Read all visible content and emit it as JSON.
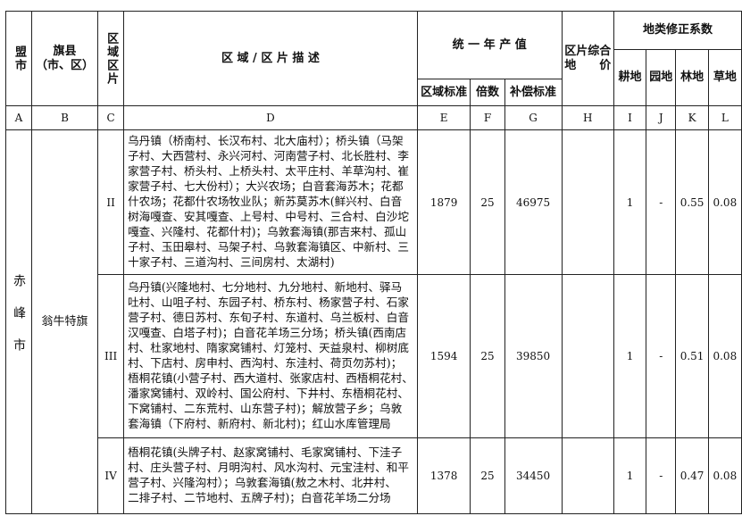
{
  "header": {
    "league_city": "盟市",
    "banner_county": "旗县",
    "banner_county_sub": "（市、区）",
    "zone": "区域区片",
    "description": "区 域 / 区 片 描 述",
    "annual_output": "统 一 年 产 值",
    "regional_standard": "区域标准",
    "multiple": "倍数",
    "compensation_standard": "补偿标准",
    "composite_price_1": "区片综合",
    "composite_price_2": "地　　价",
    "correction": "地类修正系数",
    "cultivated": "耕地",
    "garden": "园地",
    "forest": "林地",
    "grass": "草地"
  },
  "letters": [
    "A",
    "B",
    "C",
    "D",
    "E",
    "F",
    "G",
    "H",
    "I",
    "J",
    "K",
    "L"
  ],
  "city": "赤峰市",
  "county": "翁牛特旗",
  "rows": [
    {
      "zone": "II",
      "desc": [
        "乌丹镇（桥南村、长汉布村、北大庙村）；桥头镇（马架",
        "子村、大西营村、永兴河村、河南营子村、北长胜村、李",
        "家营子村、桥头村、上桥头村、太平庄村、羊草沟村、崔",
        "家营子村、七大份村）；大兴农场；白音套海苏木；花都",
        "什农场；花都什农场牧业队；新苏莫苏木(鲜兴村、白音",
        "树海嘎查、安其嘎查、上号村、中号村、三合村、白沙坨",
        "嘎查、兴隆村、花都什村)；乌敦套海镇(那吉来村、孤山",
        "子村、玉田皋村、马架子村、乌敦套海镇区、中新村、三",
        "十家子村、三道沟村、三间房村、太湖村)"
      ],
      "e": "1879",
      "f": "25",
      "g": "46975",
      "h": "",
      "i": "1",
      "j": "-",
      "k": "0.55",
      "l": "0.08"
    },
    {
      "zone": "III",
      "desc": [
        "乌丹镇(兴隆地村、七分地村、九分地村、新地村、驿马",
        "吐村、山咀子村、东园子村、桥东村、杨家营子村、石家",
        "营子村、德日苏村、东旬子村、东道村、乌兰板村、白音",
        "汉嘎查、白塔子村)；白音花羊场三分场；桥头镇(西南店",
        "村、杜家地村、隋家窝铺村、灯笼村、天益泉村、柳树底",
        "村、下店村、房申村、西沟村、东洼村、荷页勿苏村)；",
        "梧桐花镇(小营子村、西大道村、张家店村、西梧桐花村、",
        "潘家窝铺村、双岭村、国公府村、下井村、东梧桐花村、",
        "下窝铺村、二东荒村、山东营子村)；解放营子乡；乌敦",
        "套海镇（下府村、新府村、新北村)；红山水库管理局"
      ],
      "e": "1594",
      "f": "25",
      "g": "39850",
      "h": "",
      "i": "1",
      "j": "-",
      "k": "0.51",
      "l": "0.08"
    },
    {
      "zone": "IV",
      "desc": [
        "梧桐花镇(头牌子村、赵家窝铺村、毛家窝铺村、下洼子",
        "村、庄头营子村、月明沟村、风水沟村、元宝洼村、和平",
        "营子村、兴隆沟村）；乌敦套海镇(敖之木村、北井村、",
        "二排子村、二节地村、五牌子村)；白音花羊场二分场"
      ],
      "e": "1378",
      "f": "25",
      "g": "34450",
      "h": "",
      "i": "1",
      "j": "-",
      "k": "0.47",
      "l": "0.08"
    }
  ]
}
